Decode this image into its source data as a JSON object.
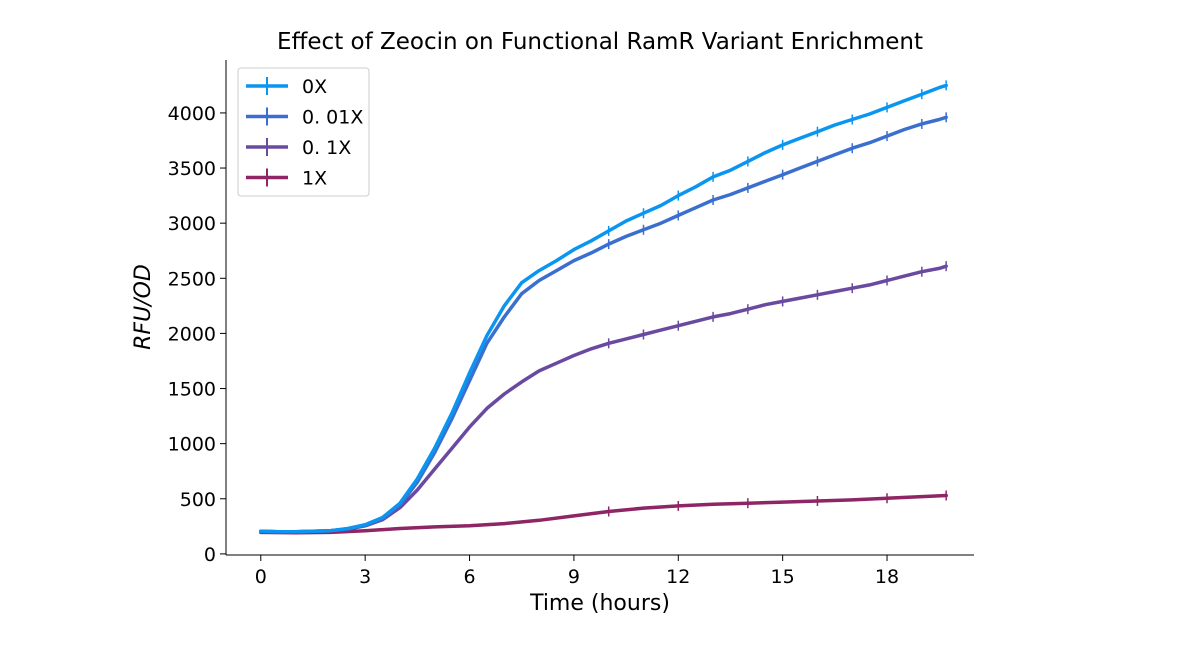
{
  "chart_data": {
    "type": "line",
    "title": "Effect of Zeocin on Functional RamR Variant Enrichment",
    "xlabel": "Time (hours)",
    "ylabel": "RFU/OD",
    "xlim": [
      -1,
      20.5
    ],
    "ylim": [
      -10,
      4480
    ],
    "xticks": [
      0,
      3,
      6,
      9,
      12,
      15,
      18
    ],
    "yticks": [
      0,
      500,
      1000,
      1500,
      2000,
      2500,
      3000,
      3500,
      4000
    ],
    "grid": false,
    "error_bars": true,
    "legend": {
      "placement": "top-left"
    },
    "series": [
      {
        "name": "0X",
        "color": "#0a96f0",
        "x": [
          0,
          0.5,
          1,
          1.5,
          2,
          2.5,
          3,
          3.5,
          4,
          4.5,
          5,
          5.5,
          6,
          6.5,
          7,
          7.5,
          8,
          8.5,
          9,
          9.5,
          10,
          10.5,
          11,
          11.5,
          12,
          12.5,
          13,
          13.5,
          14,
          14.5,
          15,
          15.5,
          16,
          16.5,
          17,
          17.5,
          18,
          18.5,
          19,
          19.5,
          19.7
        ],
        "y": [
          205,
          200,
          200,
          205,
          210,
          230,
          265,
          330,
          460,
          680,
          960,
          1280,
          1640,
          1980,
          2250,
          2460,
          2570,
          2660,
          2760,
          2840,
          2930,
          3020,
          3090,
          3160,
          3250,
          3330,
          3420,
          3480,
          3560,
          3640,
          3710,
          3770,
          3830,
          3890,
          3940,
          3990,
          4050,
          4110,
          4170,
          4230,
          4250
        ]
      },
      {
        "name": "0. 01X",
        "color": "#3a6fd0",
        "x": [
          0,
          0.5,
          1,
          1.5,
          2,
          2.5,
          3,
          3.5,
          4,
          4.5,
          5,
          5.5,
          6,
          6.5,
          7,
          7.5,
          8,
          8.5,
          9,
          9.5,
          10,
          10.5,
          11,
          11.5,
          12,
          12.5,
          13,
          13.5,
          14,
          14.5,
          15,
          15.5,
          16,
          16.5,
          17,
          17.5,
          18,
          18.5,
          19,
          19.5,
          19.7
        ],
        "y": [
          205,
          200,
          200,
          205,
          210,
          228,
          260,
          320,
          445,
          650,
          920,
          1230,
          1570,
          1910,
          2150,
          2360,
          2480,
          2570,
          2660,
          2730,
          2810,
          2880,
          2940,
          3000,
          3070,
          3140,
          3210,
          3260,
          3320,
          3380,
          3440,
          3500,
          3560,
          3620,
          3680,
          3730,
          3790,
          3850,
          3900,
          3940,
          3960
        ]
      },
      {
        "name": "0. 1X",
        "color": "#6a4aa0",
        "x": [
          0,
          0.5,
          1,
          1.5,
          2,
          2.5,
          3,
          3.5,
          4,
          4.5,
          5,
          5.5,
          6,
          6.5,
          7,
          7.5,
          8,
          8.5,
          9,
          9.5,
          10,
          10.5,
          11,
          11.5,
          12,
          12.5,
          13,
          13.5,
          14,
          14.5,
          15,
          15.5,
          16,
          16.5,
          17,
          17.5,
          18,
          18.5,
          19,
          19.5,
          19.7
        ],
        "y": [
          205,
          200,
          200,
          205,
          210,
          225,
          255,
          310,
          420,
          580,
          770,
          960,
          1150,
          1320,
          1450,
          1560,
          1660,
          1730,
          1800,
          1860,
          1910,
          1950,
          1990,
          2030,
          2070,
          2110,
          2150,
          2180,
          2220,
          2260,
          2290,
          2320,
          2350,
          2380,
          2410,
          2440,
          2480,
          2520,
          2560,
          2590,
          2610
        ]
      },
      {
        "name": "1X",
        "color": "#8e2565",
        "x": [
          0,
          1,
          2,
          3,
          4,
          5,
          6,
          7,
          8,
          9,
          10,
          11,
          12,
          13,
          14,
          15,
          16,
          17,
          18,
          19,
          19.7
        ],
        "y": [
          195,
          192,
          195,
          210,
          230,
          245,
          255,
          275,
          305,
          345,
          385,
          415,
          435,
          450,
          460,
          470,
          480,
          490,
          505,
          520,
          530
        ]
      }
    ]
  }
}
